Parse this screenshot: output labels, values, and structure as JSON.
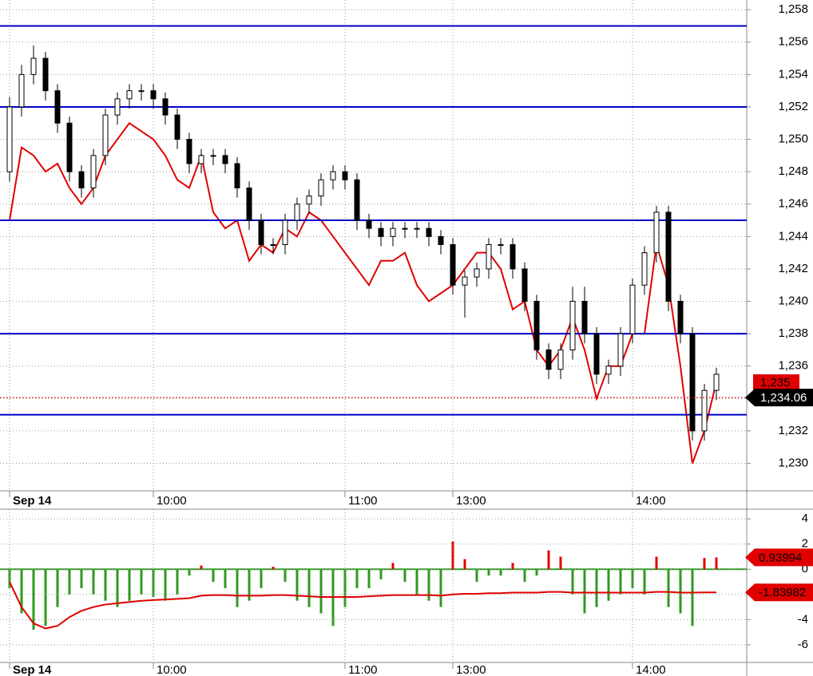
{
  "chart_data": [
    {
      "type": "candlestick",
      "categories": [
        "Sep 14",
        null,
        null,
        null,
        null,
        null,
        null,
        null,
        null,
        null,
        null,
        null,
        "10:00",
        null,
        null,
        null,
        null,
        null,
        null,
        null,
        null,
        null,
        null,
        null,
        null,
        null,
        null,
        null,
        "11:00",
        null,
        null,
        null,
        null,
        null,
        null,
        null,
        null,
        "13:00",
        null,
        null,
        null,
        null,
        null,
        null,
        null,
        null,
        null,
        null,
        null,
        null,
        null,
        null,
        "14:00",
        null,
        null,
        null,
        null,
        null,
        null,
        null
      ],
      "open": [
        1248,
        1252,
        1254,
        1255,
        1253,
        1251,
        1248,
        1247,
        1249,
        1251.5,
        1252.5,
        1253,
        1253,
        1252.5,
        1251.5,
        1250,
        1248.5,
        1249,
        1249,
        1248.5,
        1247,
        1245,
        1243.5,
        1243.5,
        1245,
        1246,
        1246.5,
        1247.5,
        1248,
        1247.5,
        1245,
        1244.5,
        1244,
        1244.5,
        1244.5,
        1244.5,
        1244,
        1243.5,
        1241,
        1241.5,
        1242,
        1243.5,
        1243.5,
        1242,
        1240,
        1237,
        1235.8,
        1237,
        1240,
        1238,
        1235.5,
        1236,
        1238,
        1241,
        1243,
        1245.5,
        1240,
        1238,
        1232,
        1234.5
      ],
      "high": [
        1252.6,
        1254.6,
        1255.8,
        1255.4,
        1253.4,
        1251.4,
        1248.4,
        1249.4,
        1251.9,
        1252.9,
        1253.4,
        1253.4,
        1253.4,
        1252.9,
        1251.9,
        1250.4,
        1249.4,
        1249.4,
        1249.4,
        1248.9,
        1247.4,
        1245.4,
        1243.9,
        1245.4,
        1246.4,
        1246.9,
        1247.9,
        1248.4,
        1248.4,
        1247.9,
        1245.4,
        1244.9,
        1244.9,
        1244.9,
        1244.9,
        1244.9,
        1244.4,
        1243.9,
        1241.9,
        1242.4,
        1243.9,
        1243.9,
        1243.9,
        1242.4,
        1240.4,
        1237.4,
        1237.4,
        1240.9,
        1240.9,
        1238.4,
        1236.4,
        1238.4,
        1241.4,
        1243.4,
        1245.9,
        1245.9,
        1240.4,
        1238.4,
        1234.9,
        1235.9
      ],
      "low": [
        1247.4,
        1251.4,
        1253.4,
        1252.4,
        1250.4,
        1247.4,
        1246.4,
        1246.4,
        1248.4,
        1250.9,
        1251.9,
        1252.4,
        1251.9,
        1250.9,
        1249.4,
        1247.9,
        1247.9,
        1248.4,
        1247.9,
        1246.4,
        1244.4,
        1242.9,
        1242.9,
        1242.9,
        1244.4,
        1245.4,
        1245.9,
        1246.9,
        1246.9,
        1244.4,
        1243.9,
        1243.4,
        1243.4,
        1243.9,
        1243.9,
        1243.4,
        1242.9,
        1240.4,
        1239,
        1240.9,
        1241.4,
        1242.9,
        1241.4,
        1239.4,
        1236.4,
        1235.2,
        1235.2,
        1236.4,
        1237.4,
        1234.9,
        1234.9,
        1235.4,
        1237.4,
        1240.4,
        1242.4,
        1239.4,
        1237.4,
        1231.4,
        1231.4,
        1233.9
      ],
      "close": [
        1252,
        1254,
        1255,
        1253,
        1251,
        1248,
        1247,
        1249,
        1251.5,
        1252.5,
        1253,
        1253,
        1252.5,
        1251.5,
        1250,
        1248.5,
        1249,
        1249,
        1248.5,
        1247,
        1245,
        1243.5,
        1243.5,
        1245,
        1246,
        1246.5,
        1247.5,
        1248,
        1247.5,
        1245,
        1244.5,
        1244,
        1244.5,
        1244.5,
        1244.5,
        1244,
        1243.5,
        1241,
        1241.5,
        1242,
        1243.5,
        1243.5,
        1242,
        1240,
        1237,
        1235.8,
        1237,
        1240,
        1238,
        1235.5,
        1236,
        1238,
        1241,
        1243,
        1245.5,
        1240,
        1238,
        1232,
        1234.5,
        1235.5
      ],
      "up_color": "#ffffff",
      "down_color": "#000000",
      "series": [
        {
          "color": "#e00000",
          "values": [
            1245,
            1249.5,
            1249,
            1248,
            1248.5,
            1247,
            1246,
            1247,
            1249,
            1250,
            1251,
            1250.5,
            1250,
            1249,
            1247.5,
            1247,
            1249,
            1245.5,
            1244.5,
            1245,
            1242.5,
            1243.5,
            1243,
            1244.5,
            1244,
            1245.5,
            1245,
            1244,
            1243,
            1242,
            1241,
            1242.5,
            1242.5,
            1243,
            1241,
            1240,
            1240.5,
            1241,
            1242,
            1243,
            1243,
            1242,
            1239.5,
            1240,
            1237,
            1236,
            1237,
            1239,
            1237,
            1234,
            1236,
            1236,
            1238,
            1238,
            1243.5,
            1241,
            1236,
            1230,
            1232,
            1235
          ]
        }
      ],
      "hlines": [
        1257,
        1252,
        1245,
        1238,
        1233
      ],
      "hline_color": "#0000c8",
      "markers": [
        {
          "value": 1235,
          "label": "1,235",
          "color": "#e00000"
        },
        {
          "value": 1234.06,
          "label": "1,234.06",
          "color": "#000000"
        }
      ],
      "ylim": [
        1228.3,
        1258.6
      ],
      "yticks": [
        {
          "value": 1230,
          "label": "1,230"
        },
        {
          "value": 1232,
          "label": "1,232"
        },
        {
          "value": 1234,
          "label": "1,234"
        },
        {
          "value": 1236,
          "label": "1,236"
        },
        {
          "value": 1238,
          "label": "1,238"
        },
        {
          "value": 1240,
          "label": "1,240"
        },
        {
          "value": 1242,
          "label": "1,242"
        },
        {
          "value": 1244,
          "label": "1,244"
        },
        {
          "value": 1246,
          "label": "1,246"
        },
        {
          "value": 1248,
          "label": "1,248"
        },
        {
          "value": 1250,
          "label": "1,250"
        },
        {
          "value": 1252,
          "label": "1,252"
        },
        {
          "value": 1254,
          "label": "1,254"
        },
        {
          "value": 1256,
          "label": "1,256"
        },
        {
          "value": 1258,
          "label": "1,258"
        }
      ],
      "grid": true
    },
    {
      "type": "bar",
      "categories": [
        "Sep 14",
        null,
        null,
        null,
        null,
        null,
        null,
        null,
        null,
        null,
        null,
        null,
        "10:00",
        null,
        null,
        null,
        null,
        null,
        null,
        null,
        null,
        null,
        null,
        null,
        null,
        null,
        null,
        null,
        "11:00",
        null,
        null,
        null,
        null,
        null,
        null,
        null,
        null,
        "13:00",
        null,
        null,
        null,
        null,
        null,
        null,
        null,
        null,
        null,
        null,
        null,
        null,
        null,
        null,
        "14:00",
        null,
        null,
        null,
        null,
        null,
        null,
        null
      ],
      "values": [
        -1.5,
        -3.5,
        -4.8,
        -4.5,
        -3,
        -2,
        -1.5,
        -2,
        -2.5,
        -3,
        -2.5,
        -2,
        -2.2,
        -2.5,
        -2,
        -0.5,
        0.3,
        -1,
        -1.5,
        -3,
        -2.5,
        -1.5,
        0.2,
        -1,
        -2.5,
        -3,
        -3.5,
        -4.5,
        -3,
        -1.5,
        -1.5,
        -0.8,
        0.5,
        -1,
        -2,
        -2.5,
        -3,
        2.2,
        0.8,
        -1,
        -0.5,
        -0.5,
        0.5,
        -1,
        -0.5,
        1.5,
        1,
        -2,
        -3.5,
        -3,
        -2.5,
        -2,
        -1.5,
        -2,
        1,
        -3,
        -3.5,
        -4.5,
        0.9,
        0.93994
      ],
      "up_color": "#e00000",
      "down_color": "#2e9a1e",
      "series": [
        {
          "color": "#e00000",
          "values": [
            -1,
            -3,
            -4.3,
            -4.7,
            -4.5,
            -3.8,
            -3.3,
            -3,
            -2.8,
            -2.7,
            -2.6,
            -2.5,
            -2.45,
            -2.4,
            -2.35,
            -2.3,
            -2.1,
            -2.05,
            -2.05,
            -2.1,
            -2.1,
            -2.1,
            -2.05,
            -2.05,
            -2.1,
            -2.15,
            -2.2,
            -2.2,
            -2.2,
            -2.2,
            -2.15,
            -2.1,
            -2.05,
            -2.05,
            -2.05,
            -2.05,
            -2.1,
            -2,
            -1.95,
            -1.95,
            -1.9,
            -1.9,
            -1.85,
            -1.85,
            -1.85,
            -1.8,
            -1.8,
            -1.85,
            -1.85,
            -1.85,
            -1.85,
            -1.85,
            -1.85,
            -1.85,
            -1.8,
            -1.8,
            -1.85,
            -1.85,
            -1.84,
            -1.83982
          ]
        }
      ],
      "markers": [
        0.93994,
        -1.83982
      ],
      "ylim": [
        -7.4,
        4.77
      ],
      "yticks": [
        -6,
        -4,
        -2,
        0,
        2,
        4
      ],
      "grid": true
    }
  ]
}
